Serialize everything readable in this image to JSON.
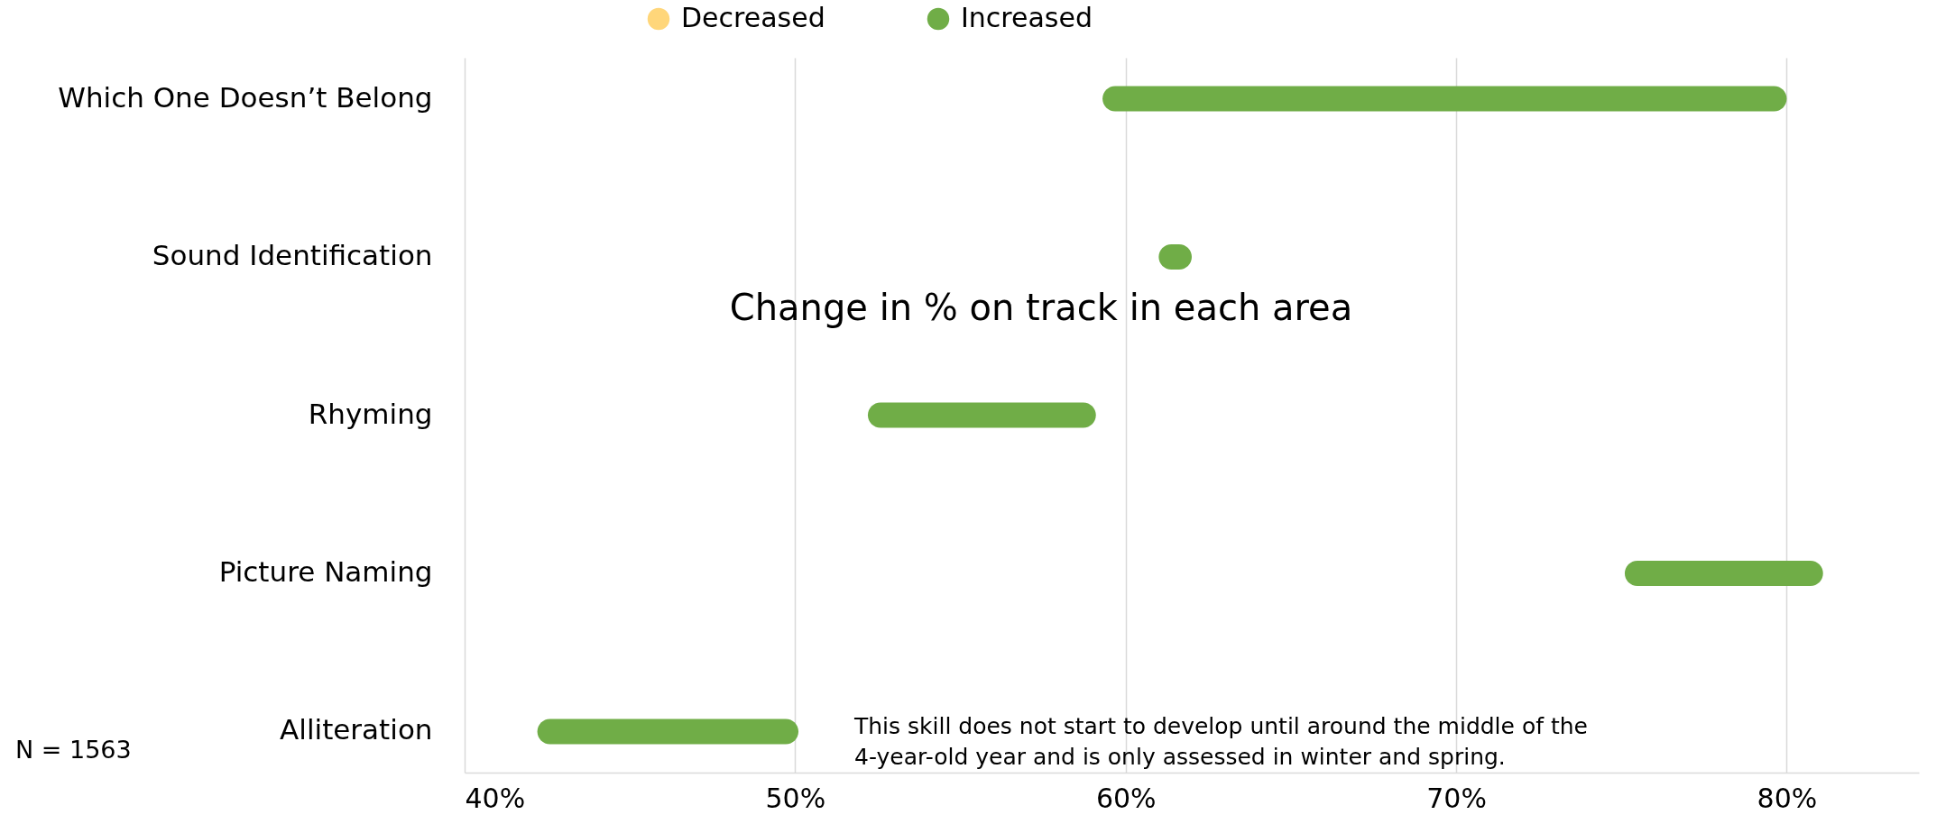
{
  "chart_data": {
    "type": "bar",
    "orientation": "horizontal",
    "title": "Change in % on track in each area",
    "categories": [
      "Which One Doesn’t Belong",
      "Sound Identification",
      "Rhyming",
      "Picture Naming",
      "Alliteration"
    ],
    "series": [
      {
        "name": "Decreased",
        "color": "#ffd67a",
        "values": [
          null,
          null,
          null,
          null,
          null
        ]
      },
      {
        "name": "Increased",
        "color": "#70ad47",
        "base": [
          59.3,
          61.0,
          52.2,
          75.1,
          42.2
        ],
        "values": [
          20.7,
          1.0,
          6.9,
          6.0,
          7.9
        ]
      }
    ],
    "xlim": [
      40,
      84
    ],
    "xticks": [
      {
        "value": 40,
        "label": "40%"
      },
      {
        "value": 50,
        "label": "50%"
      },
      {
        "value": 60,
        "label": "60%"
      },
      {
        "value": 70,
        "label": "70%"
      },
      {
        "value": 80,
        "label": "80%"
      }
    ],
    "grid": "x",
    "legend": "top",
    "annotations": [
      "N = 1563",
      "This skill does not start to develop until around the middle of the 4-year-old year and is only assessed in winter and spring."
    ]
  }
}
